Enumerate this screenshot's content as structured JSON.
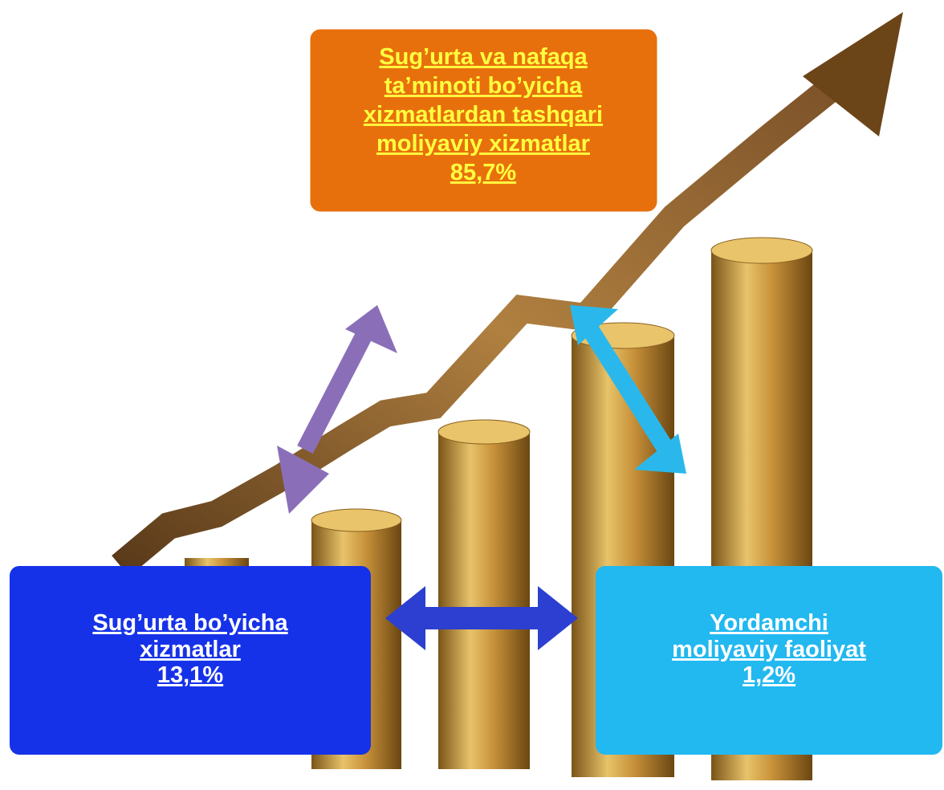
{
  "nodes": [
    {
      "lines": [
        "Sug’urta va nafaqa",
        "ta’minoti bo’yicha",
        "xizmatlardan tashqari",
        "moliyaviy xizmatlar"
      ],
      "value": "85,7%"
    },
    {
      "lines": [
        "Sug’urta bo’yicha",
        "xizmatlar"
      ],
      "value": "13,1%"
    },
    {
      "lines": [
        "Yordamchi",
        "moliyaviy faoliyat"
      ],
      "value": "1,2%"
    }
  ]
}
